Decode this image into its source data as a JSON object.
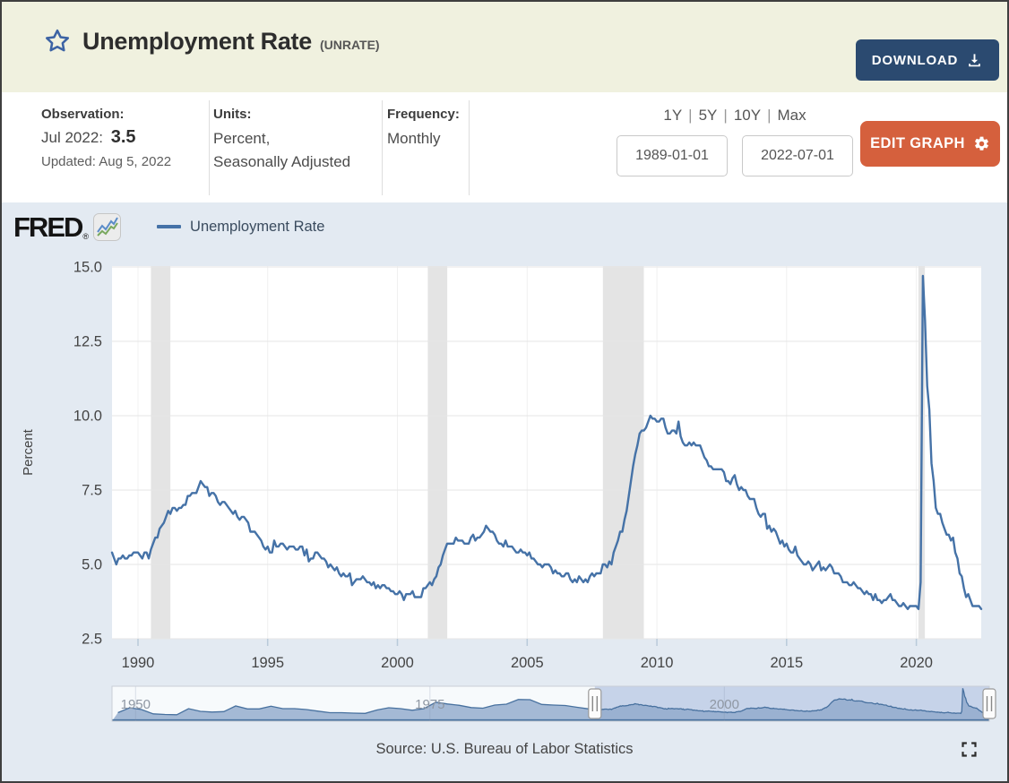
{
  "header": {
    "title": "Unemployment Rate",
    "series_id": "(UNRATE)",
    "download_label": "DOWNLOAD"
  },
  "info": {
    "observation_label": "Observation:",
    "observation_date": "Jul 2022:",
    "observation_value": "3.5",
    "updated": "Updated: Aug 5, 2022",
    "units_label": "Units:",
    "units_line1": "Percent,",
    "units_line2": "Seasonally Adjusted",
    "frequency_label": "Frequency:",
    "frequency_value": "Monthly"
  },
  "controls": {
    "ranges": [
      "1Y",
      "5Y",
      "10Y",
      "Max"
    ],
    "separator": "|",
    "date_start": "1989-01-01",
    "date_end": "2022-07-01",
    "edit_graph_label": "EDIT GRAPH"
  },
  "fred_logo": {
    "text": "FRED",
    "reg": "®"
  },
  "legend": {
    "series_label": "Unemployment Rate",
    "series_color": "#4572a7"
  },
  "chart_data": {
    "type": "line",
    "title": "Unemployment Rate (UNRATE)",
    "ylabel": "Percent",
    "source": "Source: U.S. Bureau of Labor Statistics",
    "x_start": 1989.0,
    "x_end": 2022.5,
    "ylim": [
      2.5,
      15.03
    ],
    "yticks": [
      2.5,
      5.0,
      7.5,
      10.0,
      12.5,
      15.0
    ],
    "xticks": [
      1990,
      1995,
      2000,
      2005,
      2010,
      2015,
      2020
    ],
    "grid": true,
    "line_color": "#4572a7",
    "recession_color": "#e4e4e4",
    "recessions": [
      [
        1990.5,
        1991.25
      ],
      [
        2001.17,
        2001.92
      ],
      [
        2007.92,
        2009.5
      ],
      [
        2020.08,
        2020.33
      ]
    ],
    "last_observation": {
      "date": "Jul 2022",
      "value": 3.5
    },
    "monthly": {
      "1989": [
        5.4,
        5.2,
        5.0,
        5.2,
        5.2,
        5.3,
        5.2,
        5.2,
        5.3,
        5.3,
        5.4,
        5.4
      ],
      "1990": [
        5.4,
        5.3,
        5.2,
        5.4,
        5.4,
        5.2,
        5.5,
        5.7,
        5.9,
        5.9,
        6.2,
        6.3
      ],
      "1991": [
        6.4,
        6.6,
        6.8,
        6.7,
        6.9,
        6.9,
        6.8,
        6.9,
        6.9,
        7.0,
        7.0,
        7.3
      ],
      "1992": [
        7.3,
        7.4,
        7.4,
        7.4,
        7.6,
        7.8,
        7.7,
        7.6,
        7.6,
        7.3,
        7.4,
        7.4
      ],
      "1993": [
        7.3,
        7.1,
        7.0,
        7.1,
        7.1,
        7.0,
        6.9,
        6.8,
        6.7,
        6.8,
        6.6,
        6.5
      ],
      "1994": [
        6.6,
        6.6,
        6.5,
        6.4,
        6.1,
        6.1,
        6.1,
        6.0,
        5.9,
        5.8,
        5.6,
        5.5
      ],
      "1995": [
        5.6,
        5.4,
        5.4,
        5.8,
        5.6,
        5.6,
        5.7,
        5.7,
        5.6,
        5.5,
        5.6,
        5.6
      ],
      "1996": [
        5.6,
        5.5,
        5.5,
        5.6,
        5.6,
        5.3,
        5.5,
        5.1,
        5.2,
        5.2,
        5.4,
        5.4
      ],
      "1997": [
        5.3,
        5.2,
        5.2,
        5.1,
        4.9,
        5.0,
        4.9,
        4.8,
        4.9,
        4.7,
        4.6,
        4.7
      ],
      "1998": [
        4.6,
        4.6,
        4.7,
        4.3,
        4.4,
        4.5,
        4.5,
        4.5,
        4.6,
        4.5,
        4.4,
        4.4
      ],
      "1999": [
        4.3,
        4.4,
        4.2,
        4.3,
        4.2,
        4.3,
        4.3,
        4.2,
        4.2,
        4.1,
        4.1,
        4.0
      ],
      "2000": [
        4.0,
        4.1,
        4.0,
        3.8,
        4.0,
        4.0,
        4.0,
        4.1,
        3.9,
        3.9,
        3.9,
        3.9
      ],
      "2001": [
        4.2,
        4.2,
        4.3,
        4.4,
        4.3,
        4.5,
        4.6,
        4.9,
        5.0,
        5.3,
        5.5,
        5.7
      ],
      "2002": [
        5.7,
        5.7,
        5.7,
        5.9,
        5.8,
        5.8,
        5.8,
        5.7,
        5.7,
        5.7,
        5.9,
        6.0
      ],
      "2003": [
        5.8,
        5.9,
        5.9,
        6.0,
        6.1,
        6.3,
        6.2,
        6.1,
        6.1,
        6.0,
        5.8,
        5.7
      ],
      "2004": [
        5.7,
        5.6,
        5.8,
        5.6,
        5.6,
        5.6,
        5.5,
        5.4,
        5.4,
        5.5,
        5.4,
        5.4
      ],
      "2005": [
        5.3,
        5.4,
        5.2,
        5.2,
        5.1,
        5.0,
        5.0,
        4.9,
        5.0,
        5.0,
        5.0,
        4.9
      ],
      "2006": [
        4.7,
        4.8,
        4.7,
        4.7,
        4.6,
        4.6,
        4.7,
        4.7,
        4.5,
        4.4,
        4.5,
        4.4
      ],
      "2007": [
        4.6,
        4.5,
        4.4,
        4.5,
        4.4,
        4.6,
        4.7,
        4.6,
        4.7,
        4.7,
        4.7,
        5.0
      ],
      "2008": [
        5.0,
        4.9,
        5.1,
        5.0,
        5.4,
        5.6,
        5.8,
        6.1,
        6.1,
        6.5,
        6.8,
        7.3
      ],
      "2009": [
        7.8,
        8.3,
        8.7,
        9.0,
        9.4,
        9.5,
        9.5,
        9.6,
        9.8,
        10.0,
        9.9,
        9.9
      ],
      "2010": [
        9.8,
        9.8,
        9.9,
        9.9,
        9.6,
        9.4,
        9.4,
        9.5,
        9.5,
        9.4,
        9.8,
        9.3
      ],
      "2011": [
        9.1,
        9.0,
        9.0,
        9.1,
        9.0,
        9.1,
        9.0,
        9.0,
        9.0,
        8.8,
        8.6,
        8.5
      ],
      "2012": [
        8.3,
        8.3,
        8.2,
        8.2,
        8.2,
        8.2,
        8.2,
        8.1,
        7.8,
        7.8,
        7.7,
        7.9
      ],
      "2013": [
        8.0,
        7.7,
        7.5,
        7.6,
        7.5,
        7.5,
        7.3,
        7.2,
        7.2,
        7.2,
        6.9,
        6.7
      ],
      "2014": [
        6.6,
        6.7,
        6.7,
        6.2,
        6.3,
        6.1,
        6.2,
        6.1,
        5.9,
        5.7,
        5.8,
        5.6
      ],
      "2015": [
        5.7,
        5.5,
        5.4,
        5.4,
        5.6,
        5.3,
        5.2,
        5.1,
        5.0,
        5.0,
        5.1,
        5.0
      ],
      "2016": [
        4.8,
        4.9,
        5.0,
        5.1,
        4.8,
        4.9,
        4.8,
        4.9,
        5.0,
        4.9,
        4.7,
        4.7
      ],
      "2017": [
        4.7,
        4.6,
        4.4,
        4.4,
        4.4,
        4.3,
        4.3,
        4.4,
        4.3,
        4.2,
        4.2,
        4.1
      ],
      "2018": [
        4.0,
        4.1,
        4.0,
        4.0,
        3.8,
        4.0,
        3.8,
        3.8,
        3.7,
        3.8,
        3.8,
        3.9
      ],
      "2019": [
        4.0,
        3.8,
        3.8,
        3.7,
        3.6,
        3.6,
        3.7,
        3.6,
        3.5,
        3.6,
        3.6,
        3.6
      ],
      "2020": [
        3.6,
        3.5,
        4.4,
        14.7,
        13.2,
        11.0,
        10.2,
        8.4,
        7.8,
        6.9,
        6.7,
        6.7
      ],
      "2021": [
        6.4,
        6.2,
        6.0,
        6.0,
        5.8,
        5.9,
        5.4,
        5.2,
        4.7,
        4.6,
        4.2,
        3.9
      ],
      "2022": [
        4.0,
        3.8,
        3.6,
        3.6,
        3.6,
        3.6,
        3.5
      ]
    },
    "brush": {
      "x_start": 1948.0,
      "x_end": 2022.5,
      "ymax": 15.6,
      "labels": [
        1950,
        1975,
        2000
      ],
      "selection": [
        1989.0,
        2022.5
      ],
      "annual_1948_1988": [
        3.8,
        6.0,
        5.2,
        3.3,
        3.0,
        2.9,
        5.6,
        4.4,
        4.1,
        4.3,
        6.8,
        5.5,
        5.5,
        6.7,
        5.6,
        5.6,
        5.2,
        4.5,
        3.8,
        3.8,
        3.6,
        3.5,
        5.0,
        6.0,
        5.6,
        4.9,
        5.6,
        8.5,
        7.7,
        7.1,
        6.1,
        5.8,
        7.2,
        7.6,
        9.7,
        9.6,
        7.5,
        7.2,
        7.0,
        6.2,
        5.5
      ]
    }
  }
}
